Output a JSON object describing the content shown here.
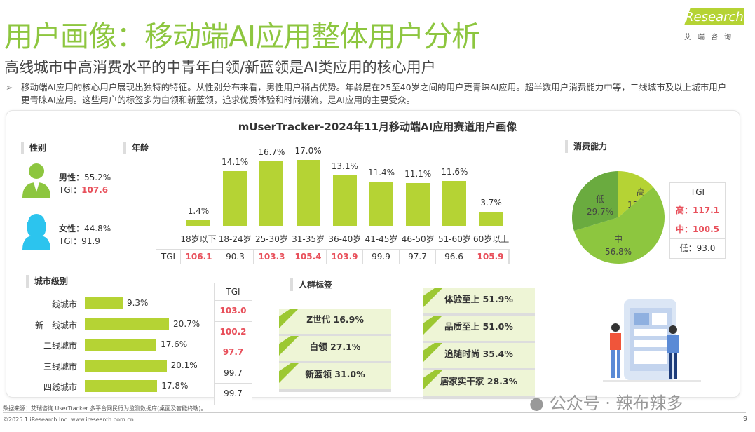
{
  "header": {
    "title": "用户画像：移动端AI应用整体用户分析",
    "subtitle": "高线城市中高消费水平的中青年白领/新蓝领是AI类应用的核心用户",
    "bullet": "移动端AI应用的核心用户展现出独特的特征。从性别分布来看，男性用户稍占优势。年龄层在25至40岁之间的用户更青睐AI应用。超半数用户消费能力中等，二线城市及以上城市用户更青睐AI应用。这些用户的标签多为白领和新蓝领，追求优质体验和时尚潮流，是AI应用的主要受众。",
    "logo": "iResearch",
    "logo_cn": "艾瑞咨询"
  },
  "chart_title": "mUserTracker-2024年11月移动端AI应用赛道用户画像",
  "gender": {
    "title": "性别",
    "male": {
      "label": "男性：",
      "value": "55.2%",
      "tgi_label": "TGI：",
      "tgi": "107.6"
    },
    "female": {
      "label": "女性：",
      "value": "44.8%",
      "tgi_label": "TGI：",
      "tgi": "91.9"
    }
  },
  "chart_data": [
    {
      "type": "bar",
      "title": "年龄",
      "categories": [
        "18岁以下",
        "18-24岁",
        "25-30岁",
        "31-35岁",
        "36-40岁",
        "41-45岁",
        "46-50岁",
        "51-60岁",
        "60岁以上"
      ],
      "values": [
        1.4,
        14.1,
        16.7,
        17.0,
        13.1,
        11.4,
        11.1,
        11.6,
        3.7
      ],
      "labels": [
        "1.4%",
        "14.1%",
        "16.7%",
        "17.0%",
        "13.1%",
        "11.4%",
        "11.1%",
        "11.6%",
        "3.7%"
      ],
      "tgi_label": "TGI",
      "tgi": [
        "106.1",
        "90.3",
        "103.3",
        "105.4",
        "103.9",
        "99.9",
        "97.7",
        "96.6",
        "105.9"
      ],
      "tgi_highlight": [
        true,
        false,
        true,
        true,
        true,
        false,
        false,
        false,
        true
      ]
    },
    {
      "type": "pie",
      "title": "消费能力",
      "categories": [
        "高",
        "中",
        "低"
      ],
      "values": [
        13.6,
        56.8,
        29.7
      ],
      "labels": [
        "13.6%",
        "56.8%",
        "29.7%"
      ],
      "colors": [
        "#b5d334",
        "#8dc63f",
        "#6aab3f"
      ],
      "tgi_header": "TGI",
      "tgi": [
        "高：117.1",
        "中：100.5",
        "低：93.0"
      ],
      "tgi_highlight": [
        true,
        true,
        false
      ]
    },
    {
      "type": "bar",
      "orientation": "horizontal",
      "title": "城市级别",
      "categories": [
        "一线城市",
        "新一线城市",
        "二线城市",
        "三线城市",
        "四线城市"
      ],
      "values": [
        9.3,
        20.7,
        17.6,
        20.1,
        17.8
      ],
      "labels": [
        "9.3%",
        "20.7%",
        "17.6%",
        "20.1%",
        "17.8%"
      ],
      "tgi_header": "TGI",
      "tgi": [
        "103.0",
        "100.2",
        "97.7",
        "99.7",
        "99.7"
      ],
      "tgi_highlight": [
        true,
        true,
        true,
        false,
        false
      ]
    }
  ],
  "tags": {
    "title": "人群标签",
    "left": [
      "Z世代  16.9%",
      "白领  27.1%",
      "新蓝领  31.0%"
    ],
    "right": [
      "体验至上  51.9%",
      "品质至上  51.0%",
      "追随时尚  35.4%",
      "居家实干家  28.3%"
    ]
  },
  "footer": {
    "source": "数据来源：艾瑞咨询 UserTracker 多平台网民行为监测数据库(桌面及智能终端)。",
    "copyright": "©2025.1 iResearch Inc. www.iresearch.com.cn",
    "page": "9",
    "watermark": "公众号 · 辣布辣多"
  },
  "colors": {
    "accent": "#8dc63f",
    "bar": "#b5d334",
    "highlight": "#e8505b"
  }
}
